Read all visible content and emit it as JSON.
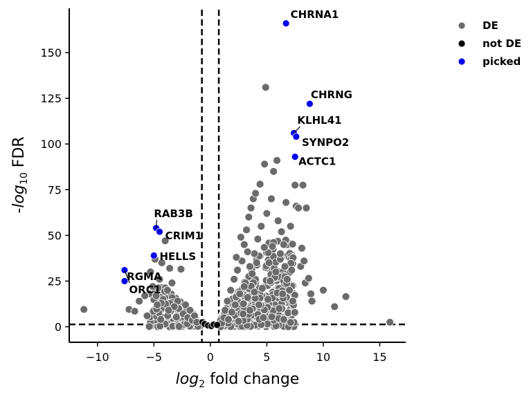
{
  "chart_data": {
    "type": "scatter",
    "title": "",
    "xlabel_base": "log",
    "xlabel_sub": "2",
    "xlabel_rest": " fold change",
    "ylabel_prefix": "-",
    "ylabel_base": "log",
    "ylabel_sub": "10",
    "ylabel_rest": " FDR",
    "xlim": [
      -12.5,
      17.3
    ],
    "ylim": [
      -8.5,
      175
    ],
    "xticks": [
      -10,
      -5,
      0,
      5,
      10,
      15
    ],
    "xtick_labels": [
      "−10",
      "−5",
      "0",
      "5",
      "10",
      "15"
    ],
    "yticks": [
      0,
      25,
      50,
      75,
      100,
      125,
      150
    ],
    "ytick_labels": [
      "0",
      "25",
      "50",
      "75",
      "100",
      "125",
      "150"
    ],
    "fc_threshold": 0.75,
    "fdr_threshold": 1.3,
    "grid": false,
    "legend_placement": "top-right",
    "colors": {
      "DE": "#6b6b6b",
      "not DE": "#000000",
      "picked": "#0000ee",
      "edge": "#ffffff"
    },
    "series": [
      {
        "name": "DE",
        "points": [
          [
            -11.2,
            9.5
          ],
          [
            -7.2,
            9.5
          ],
          [
            -6.7,
            8.5
          ],
          [
            -6.3,
            14
          ],
          [
            -5.8,
            17
          ],
          [
            -5.3,
            30
          ],
          [
            -5.1,
            22
          ],
          [
            -4.9,
            37
          ],
          [
            -4.7,
            12
          ],
          [
            -4.5,
            26
          ],
          [
            -4.3,
            35
          ],
          [
            -4.0,
            47
          ],
          [
            -3.8,
            20
          ],
          [
            -3.6,
            32
          ],
          [
            -3.4,
            24
          ],
          [
            -2.6,
            31.5
          ],
          [
            -2.9,
            14
          ],
          [
            -3.2,
            11
          ],
          [
            -2.4,
            7
          ],
          [
            -2.2,
            12
          ],
          [
            -2.0,
            5
          ],
          [
            -1.8,
            9
          ],
          [
            -1.6,
            3.5
          ],
          [
            -1.4,
            6
          ],
          [
            -1.2,
            2.5
          ],
          [
            -5.6,
            6
          ],
          [
            -4.4,
            4
          ],
          [
            -3.7,
            9
          ],
          [
            -4.8,
            17
          ],
          [
            1.0,
            2
          ],
          [
            1.2,
            5
          ],
          [
            1.3,
            9
          ],
          [
            1.5,
            14
          ],
          [
            1.6,
            4
          ],
          [
            1.8,
            20
          ],
          [
            1.9,
            8
          ],
          [
            2.1,
            26
          ],
          [
            2.2,
            12
          ],
          [
            2.4,
            31
          ],
          [
            2.5,
            3
          ],
          [
            2.6,
            18
          ],
          [
            2.8,
            36
          ],
          [
            2.9,
            7
          ],
          [
            3.0,
            45
          ],
          [
            3.1,
            24
          ],
          [
            3.2,
            53
          ],
          [
            3.3,
            16
          ],
          [
            3.4,
            60
          ],
          [
            3.5,
            9
          ],
          [
            3.6,
            65
          ],
          [
            3.7,
            29
          ],
          [
            3.8,
            70
          ],
          [
            3.9,
            40
          ],
          [
            4.0,
            73
          ],
          [
            4.2,
            48
          ],
          [
            4.3,
            12
          ],
          [
            4.4,
            78
          ],
          [
            4.5,
            55
          ],
          [
            4.6,
            21
          ],
          [
            4.8,
            89
          ],
          [
            4.9,
            131
          ],
          [
            5.0,
            62
          ],
          [
            5.2,
            35
          ],
          [
            5.4,
            70
          ],
          [
            5.5,
            44
          ],
          [
            5.7,
            27
          ],
          [
            5.9,
            91
          ],
          [
            6.0,
            58
          ],
          [
            6.2,
            40
          ],
          [
            6.4,
            18
          ],
          [
            6.5,
            45
          ],
          [
            6.6,
            33
          ],
          [
            6.8,
            26
          ],
          [
            7.0,
            20
          ],
          [
            7.2,
            31
          ],
          [
            7.5,
            77.5
          ],
          [
            7.6,
            66
          ],
          [
            7.8,
            65
          ],
          [
            8.0,
            33
          ],
          [
            8.2,
            77.5
          ],
          [
            8.3,
            36
          ],
          [
            8.4,
            24
          ],
          [
            8.5,
            65
          ],
          [
            8.7,
            26.5
          ],
          [
            8.9,
            18
          ],
          [
            9.0,
            14
          ],
          [
            10.0,
            20
          ],
          [
            11.0,
            11
          ],
          [
            12.0,
            16.5
          ],
          [
            15.9,
            2.5
          ],
          [
            3.5,
            33
          ],
          [
            2.7,
            49
          ],
          [
            3.3,
            41
          ],
          [
            4.1,
            35
          ],
          [
            5.1,
            15
          ],
          [
            6.1,
            10
          ],
          [
            4.7,
            5
          ],
          [
            2.3,
            38
          ],
          [
            3.0,
            22
          ],
          [
            3.9,
            19
          ],
          [
            5.3,
            25
          ],
          [
            5.8,
            30
          ],
          [
            6.3,
            52
          ],
          [
            7.1,
            55
          ],
          [
            6.7,
            68
          ],
          [
            5.6,
            85
          ],
          [
            7.3,
            14
          ],
          [
            8.1,
            43
          ]
        ]
      },
      {
        "name": "not DE",
        "points": [
          [
            -0.7,
            2.5
          ],
          [
            -0.5,
            1.5
          ],
          [
            -0.2,
            0.7
          ],
          [
            0.1,
            0.4
          ],
          [
            0.3,
            1.2
          ],
          [
            0.6,
            1.0
          ]
        ]
      },
      {
        "name": "picked",
        "points": [
          [
            6.7,
            166
          ],
          [
            8.8,
            122
          ],
          [
            7.4,
            106
          ],
          [
            7.6,
            104
          ],
          [
            7.5,
            93
          ],
          [
            -4.8,
            54
          ],
          [
            -4.5,
            52
          ],
          [
            -5.0,
            39
          ],
          [
            -7.6,
            31
          ],
          [
            -7.6,
            25
          ]
        ]
      }
    ],
    "annotations": [
      {
        "label": "CHRNA1",
        "x": 6.7,
        "y": 166,
        "tx": 7.1,
        "ty": 169,
        "arrow": false
      },
      {
        "label": "CHRNG",
        "x": 8.8,
        "y": 122,
        "tx": 8.9,
        "ty": 125,
        "arrow": false
      },
      {
        "label": "KLHL41",
        "x": 7.4,
        "y": 106,
        "tx": 7.7,
        "ty": 111,
        "arrow": true
      },
      {
        "label": "SYNPO2",
        "x": 7.6,
        "y": 104,
        "tx": 8.1,
        "ty": 99,
        "arrow": false
      },
      {
        "label": "ACTC1",
        "x": 7.5,
        "y": 93,
        "tx": 7.8,
        "ty": 88.5,
        "arrow": false
      },
      {
        "label": "RAB3B",
        "x": -4.8,
        "y": 54,
        "tx": -5.0,
        "ty": 60,
        "arrow": true
      },
      {
        "label": "CRIM1",
        "x": -4.5,
        "y": 52,
        "tx": -4.0,
        "ty": 47.8,
        "arrow": false
      },
      {
        "label": "HELLS",
        "x": -5.0,
        "y": 39,
        "tx": -4.5,
        "ty": 36.5,
        "arrow": false
      },
      {
        "label": "RGMA",
        "x": -7.6,
        "y": 31,
        "tx": -7.4,
        "ty": 25.5,
        "arrow": true
      },
      {
        "label": "ORC1",
        "x": -7.6,
        "y": 25,
        "tx": -7.2,
        "ty": 18.3,
        "arrow": false
      }
    ]
  }
}
